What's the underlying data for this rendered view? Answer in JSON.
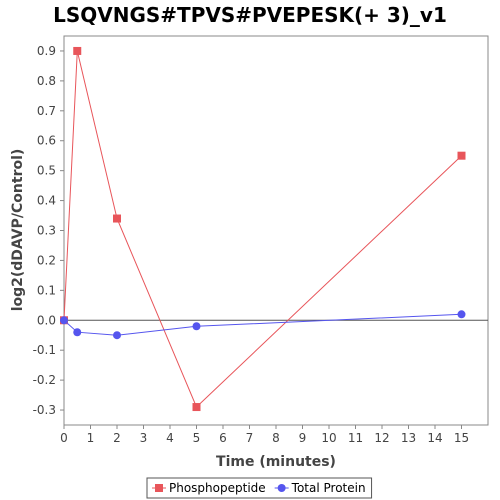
{
  "chart_data": {
    "type": "line",
    "title": "LSQVNGS#TPVS#PVEPESK(+ 3)_v1",
    "xlabel": "Time (minutes)",
    "ylabel": "log2(dDAVP/Control)",
    "xlim": [
      0,
      16
    ],
    "ylim": [
      -0.35,
      0.95
    ],
    "xticks": [
      0,
      1,
      2,
      3,
      4,
      5,
      6,
      7,
      8,
      9,
      10,
      11,
      12,
      13,
      14,
      15
    ],
    "yticks": [
      -0.3,
      -0.2,
      -0.1,
      0.0,
      0.1,
      0.2,
      0.3,
      0.4,
      0.5,
      0.6,
      0.7,
      0.8,
      0.9
    ],
    "xtick_labels": [
      "0",
      "1",
      "2",
      "3",
      "4",
      "5",
      "6",
      "7",
      "8",
      "9",
      "10",
      "11",
      "12",
      "13",
      "14",
      "15"
    ],
    "ytick_labels": [
      "-0.3",
      "-0.2",
      "-0.1",
      "0.0",
      "0.1",
      "0.2",
      "0.3",
      "0.4",
      "0.5",
      "0.6",
      "0.7",
      "0.8",
      "0.9"
    ],
    "zero_line": true,
    "grid": false,
    "legend_position": "bottom-center",
    "series": [
      {
        "name": "Phosphopeptide",
        "color": "#e8555a",
        "marker": "square",
        "x": [
          0,
          0.5,
          2,
          5,
          15
        ],
        "y": [
          0.0,
          0.9,
          0.34,
          -0.29,
          0.55
        ]
      },
      {
        "name": "Total Protein",
        "color": "#5555ee",
        "marker": "circle",
        "x": [
          0,
          0.5,
          2,
          5,
          15
        ],
        "y": [
          0.0,
          -0.04,
          -0.05,
          -0.02,
          0.02
        ]
      }
    ]
  }
}
